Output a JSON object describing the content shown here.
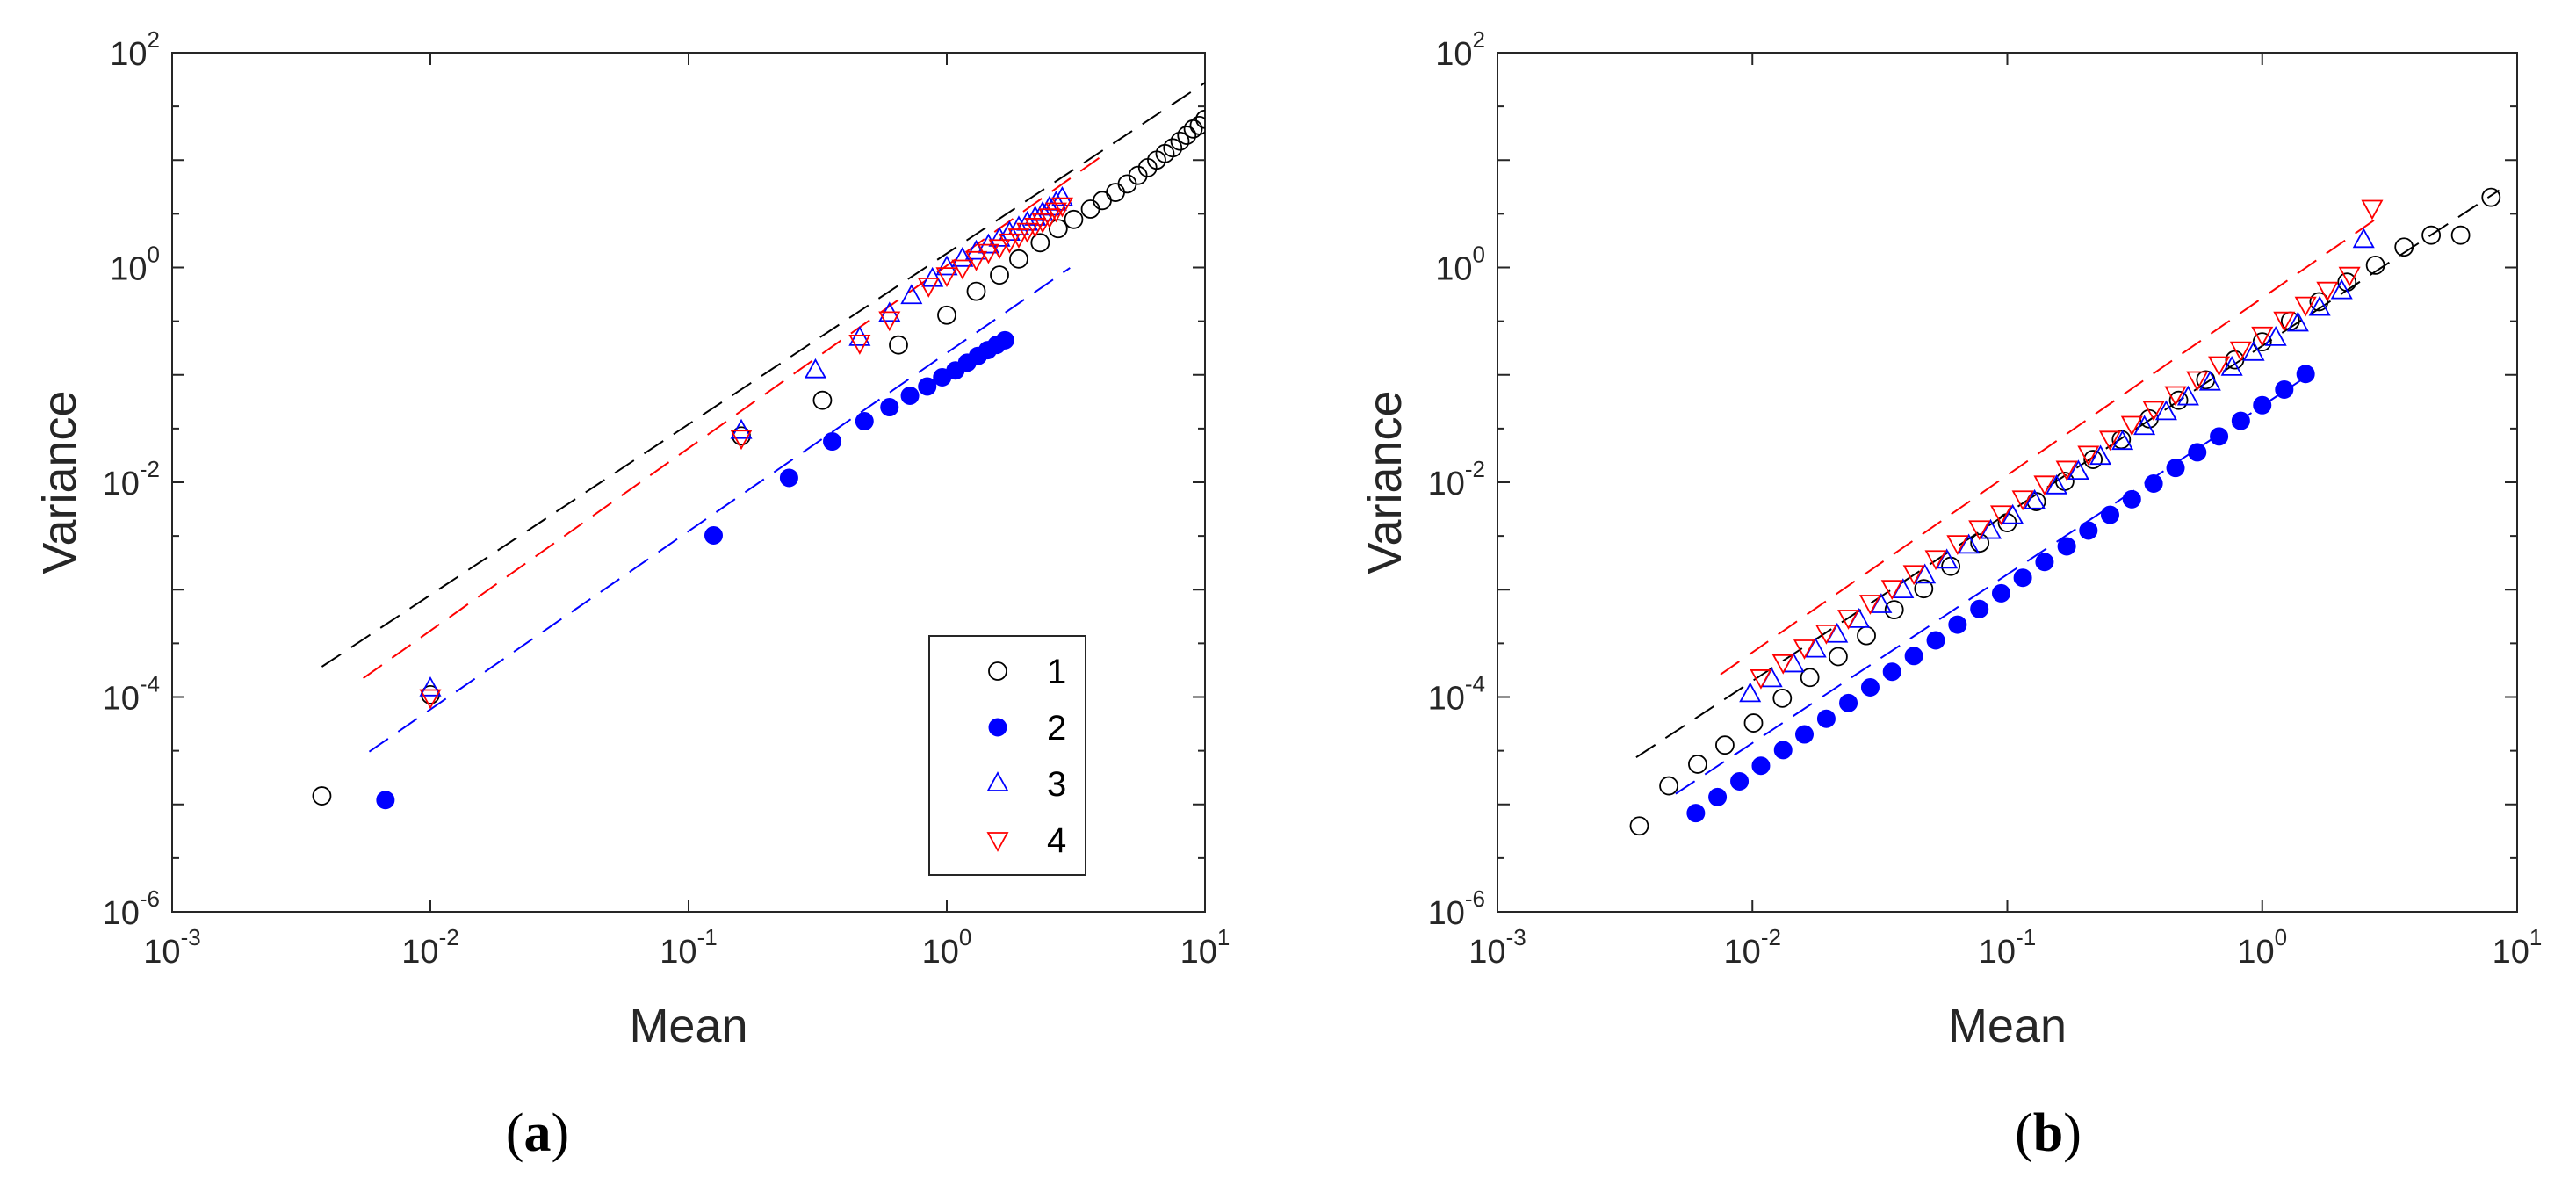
{
  "colors": {
    "s1": "#000000",
    "s2": "#0000ff",
    "s3": "#0000ff",
    "s4": "#ff0000",
    "axis": "#262626"
  },
  "chart_data": [
    {
      "panel": "a",
      "caption": "a",
      "type": "scatter",
      "xscale": "log",
      "yscale": "log",
      "xlabel": "Mean",
      "ylabel": "Variance",
      "xlim": [
        0.001,
        10
      ],
      "ylim": [
        1e-06,
        100
      ],
      "xticks": [
        {
          "base": "10",
          "exp": "-3"
        },
        {
          "base": "10",
          "exp": "-2"
        },
        {
          "base": "10",
          "exp": "-1"
        },
        {
          "base": "10",
          "exp": "0"
        },
        {
          "base": "10",
          "exp": "1"
        }
      ],
      "yticks": [
        {
          "base": "10",
          "exp": "-6"
        },
        {
          "base": "10",
          "exp": "-4"
        },
        {
          "base": "10",
          "exp": "-2"
        },
        {
          "base": "10",
          "exp": "0"
        },
        {
          "base": "10",
          "exp": "2"
        }
      ],
      "legend": {
        "position": "bottom-right",
        "entries": [
          "1",
          "2",
          "3",
          "4"
        ]
      },
      "series": [
        {
          "name": "1",
          "marker": "circle-open",
          "color": "#000000",
          "x": [
            0.0038,
            0.01,
            0.16,
            0.33,
            0.65,
            1.0,
            1.3,
            1.6,
            1.9,
            2.3,
            2.7,
            3.1,
            3.6,
            4.0,
            4.5,
            5.0,
            5.5,
            6.0,
            6.5,
            7.0,
            7.5,
            8.0,
            8.5,
            9.0,
            9.5,
            10.0
          ],
          "y": [
            1.2e-05,
            0.000105,
            0.027,
            0.058,
            0.19,
            0.36,
            0.6,
            0.85,
            1.2,
            1.7,
            2.3,
            2.8,
            3.5,
            4.2,
            5.0,
            6.0,
            7.2,
            8.5,
            10.0,
            11.5,
            13.0,
            15.0,
            17.0,
            19.5,
            21.0,
            24.0
          ],
          "fit": {
            "x1": 0.0038,
            "x2": 11,
            "a": 1.59,
            "b": 1.35
          }
        },
        {
          "name": "2",
          "marker": "circle-filled",
          "color": "#0000ff",
          "x": [
            0.0067,
            0.125,
            0.245,
            0.36,
            0.48,
            0.6,
            0.72,
            0.84,
            0.96,
            1.08,
            1.2,
            1.32,
            1.44,
            1.56,
            1.68
          ],
          "y": [
            1.1e-05,
            0.0032,
            0.011,
            0.024,
            0.037,
            0.05,
            0.064,
            0.078,
            0.095,
            0.11,
            0.13,
            0.15,
            0.17,
            0.19,
            0.21
          ],
          "fit": {
            "x1": 0.0058,
            "x2": 3.0,
            "a": 1.66,
            "b": 0.16
          }
        },
        {
          "name": "3",
          "marker": "triangle-up-open",
          "color": "#0000ff",
          "x": [
            0.01,
            0.16,
            0.31,
            0.46,
            0.6,
            0.73,
            0.88,
            1.0,
            1.15,
            1.3,
            1.45,
            1.6,
            1.75,
            1.9,
            2.05,
            2.2,
            2.35,
            2.5,
            2.65,
            2.8
          ],
          "y": [
            0.00012,
            0.03,
            0.11,
            0.22,
            0.37,
            0.54,
            0.78,
            1.0,
            1.2,
            1.4,
            1.6,
            1.85,
            2.1,
            2.35,
            2.6,
            2.9,
            3.2,
            3.6,
            4.0,
            4.4
          ]
        },
        {
          "name": "4",
          "marker": "triangle-down-open",
          "color": "#ff0000",
          "x": [
            0.01,
            0.16,
            0.46,
            0.6,
            0.85,
            1.0,
            1.15,
            1.3,
            1.45,
            1.6,
            1.75,
            1.9,
            2.05,
            2.2,
            2.35,
            2.5,
            2.65,
            2.8
          ],
          "y": [
            0.0001,
            0.026,
            0.2,
            0.33,
            0.68,
            0.85,
            1.0,
            1.2,
            1.4,
            1.55,
            1.75,
            1.95,
            2.2,
            2.45,
            2.7,
            3.0,
            3.4,
            3.8
          ],
          "fit": {
            "x1": 0.0055,
            "x2": 4.0,
            "a": 1.7,
            "b": 1.04
          }
        }
      ]
    },
    {
      "panel": "b",
      "caption": "b",
      "type": "scatter",
      "xscale": "log",
      "yscale": "log",
      "xlabel": "Mean",
      "ylabel": "Variance",
      "xlim": [
        0.001,
        10
      ],
      "ylim": [
        1e-06,
        100
      ],
      "xticks": [
        {
          "base": "10",
          "exp": "-3"
        },
        {
          "base": "10",
          "exp": "-2"
        },
        {
          "base": "10",
          "exp": "-1"
        },
        {
          "base": "10",
          "exp": "0"
        },
        {
          "base": "10",
          "exp": "1"
        }
      ],
      "yticks": [
        {
          "base": "10",
          "exp": "-6"
        },
        {
          "base": "10",
          "exp": "-4"
        },
        {
          "base": "10",
          "exp": "-2"
        },
        {
          "base": "10",
          "exp": "0"
        },
        {
          "base": "10",
          "exp": "2"
        }
      ],
      "series": [
        {
          "name": "1",
          "marker": "circle-open",
          "color": "#000000",
          "x": [
            0.0036,
            0.0047,
            0.0061,
            0.0078,
            0.0101,
            0.0131,
            0.0168,
            0.0217,
            0.028,
            0.036,
            0.047,
            0.06,
            0.078,
            0.1,
            0.13,
            0.168,
            0.217,
            0.28,
            0.36,
            0.47,
            0.6,
            0.78,
            1.0,
            1.29,
            1.67,
            2.15,
            2.78,
            3.6,
            4.6,
            6.0,
            7.9
          ],
          "y": [
            6.3e-06,
            1.49e-05,
            2.37e-05,
            3.57e-05,
            5.73e-05,
            9.75e-05,
            0.000152,
            0.000238,
            0.000373,
            0.00065,
            0.00102,
            0.00165,
            0.00272,
            0.0042,
            0.0066,
            0.0102,
            0.0163,
            0.025,
            0.039,
            0.058,
            0.09,
            0.138,
            0.203,
            0.317,
            0.48,
            0.73,
            1.05,
            1.55,
            2.0,
            2.0,
            4.5
          ],
          "fit": {
            "x1": 0.0035,
            "x2": 8.5,
            "a": 1.56,
            "b": 0.186
          }
        },
        {
          "name": "2",
          "marker": "circle-filled",
          "color": "#0000ff",
          "x": [
            0.006,
            0.0073,
            0.0089,
            0.0108,
            0.0132,
            0.016,
            0.0195,
            0.0238,
            0.029,
            0.0353,
            0.043,
            0.0524,
            0.0638,
            0.0777,
            0.0946,
            0.115,
            0.14,
            0.171,
            0.208,
            0.253,
            0.308,
            0.375,
            0.457,
            0.556,
            0.677,
            0.824,
            1.0,
            1.22,
            1.48
          ],
          "y": [
            8.3e-06,
            1.17e-05,
            1.64e-05,
            2.29e-05,
            3.21e-05,
            4.49e-05,
            6.28e-05,
            8.79e-05,
            0.000123,
            0.000172,
            0.000241,
            0.000337,
            0.000472,
            0.00066,
            0.000925,
            0.00129,
            0.00181,
            0.00253,
            0.00355,
            0.00497,
            0.00695,
            0.00973,
            0.0136,
            0.019,
            0.0267,
            0.0373,
            0.0522,
            0.073,
            0.102
          ],
          "fit": {
            "x1": 0.005,
            "x2": 1.6,
            "a": 1.57,
            "b": 0.0515
          }
        },
        {
          "name": "3",
          "marker": "triangle-up-open",
          "color": "#0000ff",
          "x": [
            0.0098,
            0.0119,
            0.0145,
            0.0177,
            0.0215,
            0.0262,
            0.032,
            0.039,
            0.0475,
            0.0579,
            0.0706,
            0.086,
            0.105,
            0.128,
            0.156,
            0.19,
            0.232,
            0.283,
            0.345,
            0.42,
            0.512,
            0.624,
            0.76,
            0.926,
            1.13,
            1.38,
            1.68,
            2.05,
            2.5
          ],
          "y": [
            0.000106,
            0.000146,
            0.000201,
            0.000276,
            0.000379,
            0.000521,
            0.000716,
            0.000984,
            0.00135,
            0.00186,
            0.00256,
            0.00351,
            0.00483,
            0.00664,
            0.00913,
            0.0125,
            0.0172,
            0.0237,
            0.0326,
            0.0448,
            0.0615,
            0.0845,
            0.116,
            0.16,
            0.22,
            0.3,
            0.42,
            0.6,
            1.8
          ]
        },
        {
          "name": "4",
          "marker": "triangle-down-open",
          "color": "#ff0000",
          "x": [
            0.0108,
            0.0132,
            0.016,
            0.0195,
            0.0238,
            0.029,
            0.0353,
            0.043,
            0.0524,
            0.0638,
            0.0777,
            0.0946,
            0.115,
            0.14,
            0.171,
            0.208,
            0.253,
            0.308,
            0.375,
            0.457,
            0.556,
            0.677,
            0.824,
            1.0,
            1.22,
            1.48,
            1.8,
            2.2,
            2.7
          ],
          "y": [
            0.000153,
            0.000211,
            0.00029,
            0.0004,
            0.00055,
            0.000757,
            0.00104,
            0.00143,
            0.00197,
            0.00272,
            0.00374,
            0.00515,
            0.00709,
            0.00976,
            0.0134,
            0.0185,
            0.0255,
            0.035,
            0.0482,
            0.0664,
            0.0914,
            0.126,
            0.173,
            0.238,
            0.328,
            0.452,
            0.622,
            0.857,
            3.6
          ],
          "fit": {
            "x1": 0.0075,
            "x2": 2.9,
            "a": 1.65,
            "b": 0.52
          }
        }
      ]
    }
  ]
}
